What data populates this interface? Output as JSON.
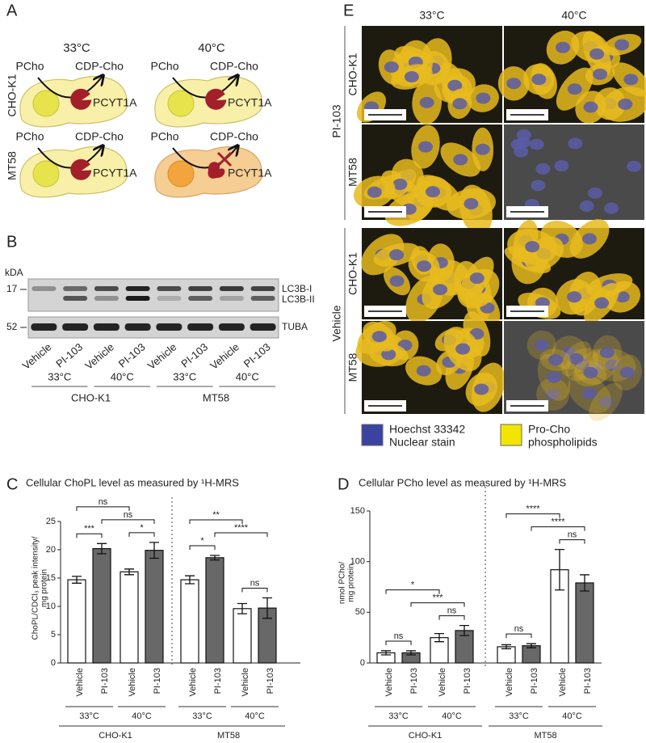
{
  "panel_a": {
    "label": "A",
    "temperatures": [
      "33°C",
      "40°C"
    ],
    "cell_lines": [
      "CHO-K1",
      "MT58"
    ],
    "cells": [
      {
        "substrate": "PCho",
        "product": "CDP-Cho",
        "enzyme": "PCYT1A"
      },
      {
        "substrate": "PCho",
        "product": "CDP-Cho",
        "enzyme": "PCYT1A"
      },
      {
        "substrate": "PCho",
        "product": "CDP-Cho",
        "enzyme": "PCYT1A"
      },
      {
        "substrate": "PCho",
        "product": "CDP-Cho",
        "enzyme": "PCYT1A"
      }
    ]
  },
  "panel_b": {
    "label": "B",
    "unit": "kDA",
    "markers": [
      17,
      52
    ],
    "bands": [
      "LC3B-I",
      "LC3B-II",
      "TUBA"
    ],
    "lanes": [
      "Vehicle",
      "PI-103",
      "Vehicle",
      "PI-103",
      "Vehicle",
      "PI-103",
      "Vehicle",
      "PI-103"
    ],
    "temperatures": [
      "33°C",
      "40°C",
      "33°C",
      "40°C"
    ],
    "cell_lines": [
      "CHO-K1",
      "MT58"
    ]
  },
  "panel_e": {
    "label": "E",
    "temperatures": [
      "33°C",
      "40°C"
    ],
    "treatments": [
      "PI-103",
      "Vehicle"
    ],
    "cell_lines": [
      "CHO-K1",
      "MT58",
      "CHO-K1",
      "MT58"
    ],
    "legend": [
      {
        "lines": [
          "Hoechst 33342",
          "Nuclear stain"
        ],
        "color": "#3b43a0"
      },
      {
        "lines": [
          "Pro-Cho",
          "phospholipids"
        ],
        "color": "#f2e600"
      }
    ]
  },
  "chart_data": [
    {
      "type": "bar",
      "panel": "C",
      "title": "Cellular ChoPL level as measured by ¹H-MRS",
      "ylabel": [
        "ChoPL/CDCl₃ peak intensity/",
        "mg protein"
      ],
      "categories": [
        "Vehicle",
        "PI-103",
        "Vehicle",
        "PI-103",
        "Vehicle",
        "PI-103",
        "Vehicle",
        "PI-103"
      ],
      "values": [
        14.7,
        20.2,
        16.1,
        19.9,
        14.7,
        18.6,
        9.6,
        9.7
      ],
      "errors": [
        0.6,
        0.9,
        0.5,
        1.4,
        0.7,
        0.4,
        0.9,
        1.8
      ],
      "colors": [
        "#ffffff",
        "#686868",
        "#ffffff",
        "#686868",
        "#ffffff",
        "#686868",
        "#ffffff",
        "#686868"
      ],
      "temperatures": [
        "33°C",
        "40°C",
        "33°C",
        "40°C"
      ],
      "cell_lines": [
        "CHO-K1",
        "MT58"
      ],
      "ylim": [
        0,
        25
      ],
      "yticks": [
        0,
        5,
        10,
        15,
        20,
        25
      ],
      "significance": [
        {
          "from": 0,
          "to": 1,
          "label": "***"
        },
        {
          "from": 2,
          "to": 3,
          "label": "*"
        },
        {
          "from": 1,
          "to": 3,
          "label": "ns"
        },
        {
          "from": 0,
          "to": 2,
          "label": "ns"
        },
        {
          "from": 4,
          "to": 5,
          "label": "*"
        },
        {
          "from": 6,
          "to": 7,
          "label": "ns"
        },
        {
          "from": 5,
          "to": 7,
          "label": "****"
        },
        {
          "from": 4,
          "to": 6,
          "label": "**"
        }
      ]
    },
    {
      "type": "bar",
      "panel": "D",
      "title": "Cellular PCho level as measured by ¹H-MRS",
      "ylabel": [
        "nmol PCho/",
        "mg protein"
      ],
      "categories": [
        "Vehicle",
        "PI-103",
        "Vehicle",
        "PI-103",
        "Vehicle",
        "PI-103",
        "Vehicle",
        "PI-103"
      ],
      "values": [
        10,
        10,
        25,
        32,
        16,
        17,
        92,
        79
      ],
      "errors": [
        2,
        2,
        4,
        5,
        2,
        2,
        20,
        8
      ],
      "colors": [
        "#ffffff",
        "#686868",
        "#ffffff",
        "#686868",
        "#ffffff",
        "#686868",
        "#ffffff",
        "#686868"
      ],
      "temperatures": [
        "33°C",
        "40°C",
        "33°C",
        "40°C"
      ],
      "cell_lines": [
        "CHO-K1",
        "MT58"
      ],
      "ylim": [
        0,
        150
      ],
      "yticks": [
        0,
        50,
        100,
        150
      ],
      "significance": [
        {
          "from": 0,
          "to": 1,
          "label": "ns"
        },
        {
          "from": 2,
          "to": 3,
          "label": "ns"
        },
        {
          "from": 1,
          "to": 3,
          "label": "***"
        },
        {
          "from": 0,
          "to": 2,
          "label": "*"
        },
        {
          "from": 4,
          "to": 5,
          "label": "ns"
        },
        {
          "from": 6,
          "to": 7,
          "label": "ns"
        },
        {
          "from": 5,
          "to": 7,
          "label": "****"
        },
        {
          "from": 4,
          "to": 6,
          "label": "****"
        }
      ]
    }
  ]
}
